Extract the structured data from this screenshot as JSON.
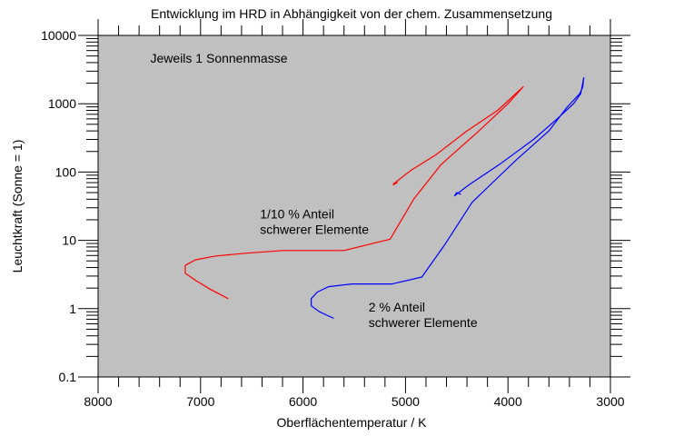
{
  "chart_data": {
    "type": "line",
    "title": "Entwicklung im HRD in Abhängigkeit von der chem. Zusammensetzung",
    "xlabel": "Oberflächentemperatur / K",
    "ylabel": "Leuchtkraft (Sonne = 1)",
    "x_reversed": true,
    "xlim": [
      8000,
      3000
    ],
    "ylim": [
      0.1,
      10000
    ],
    "yscale": "log",
    "grid": false,
    "background": "#c0c0c0",
    "x_ticks": [
      {
        "value": 8000,
        "label": "8000"
      },
      {
        "value": 7000,
        "label": "7000"
      },
      {
        "value": 6000,
        "label": "6000"
      },
      {
        "value": 5000,
        "label": "5000"
      },
      {
        "value": 4000,
        "label": "4000"
      },
      {
        "value": 3000,
        "label": "3000"
      }
    ],
    "y_ticks": [
      {
        "value": 0.1,
        "label": "0.1"
      },
      {
        "value": 1,
        "label": "1"
      },
      {
        "value": 10,
        "label": "10"
      },
      {
        "value": 100,
        "label": "100"
      },
      {
        "value": 1000,
        "label": "1000"
      },
      {
        "value": 10000,
        "label": "10000"
      }
    ],
    "annotations": [
      {
        "text": "Jeweils 1 Sonnenmasse",
        "x": 7490,
        "y": 4000,
        "lines": [
          "Jeweils 1 Sonnenmasse"
        ]
      },
      {
        "text": "1/10 % Anteil schwerer Elemente",
        "x": 6420,
        "y": 21,
        "lines": [
          "1/10 % Anteil",
          "schwerer Elemente"
        ]
      },
      {
        "text": "2 % Anteil schwerer Elemente",
        "x": 5360,
        "y": 0.9,
        "lines": [
          "2 % Anteil",
          "schwerer Elemente"
        ]
      }
    ],
    "series": [
      {
        "color": "#ff0000",
        "x": [
          6730,
          6900,
          7050,
          7150,
          7150,
          7050,
          6850,
          6550,
          6200,
          5600,
          5150,
          4920,
          4650,
          4300,
          4000,
          3850,
          4100,
          4400,
          4700,
          4950,
          5090,
          5120,
          5080,
          5120
        ],
        "y": [
          1.4,
          1.9,
          2.6,
          3.3,
          4.3,
          5.2,
          5.9,
          6.5,
          7.1,
          7.1,
          10.4,
          40,
          130,
          380,
          1000,
          1780,
          800,
          400,
          180,
          105,
          72,
          65,
          70,
          68
        ]
      },
      {
        "color": "#0000ff",
        "x": [
          5700,
          5840,
          5920,
          5920,
          5860,
          5750,
          5520,
          5130,
          4840,
          4620,
          4350,
          4150,
          3920,
          3600,
          3420,
          3300,
          3270,
          3260,
          3290,
          3360,
          3520,
          3750,
          4080,
          4380,
          4520,
          4500,
          4460
        ],
        "y": [
          0.72,
          0.9,
          1.1,
          1.4,
          1.75,
          2.1,
          2.3,
          2.3,
          2.9,
          8.5,
          36,
          70,
          150,
          400,
          900,
          1400,
          1750,
          2400,
          1400,
          1000,
          600,
          300,
          130,
          65,
          45,
          50,
          47
        ]
      }
    ]
  }
}
